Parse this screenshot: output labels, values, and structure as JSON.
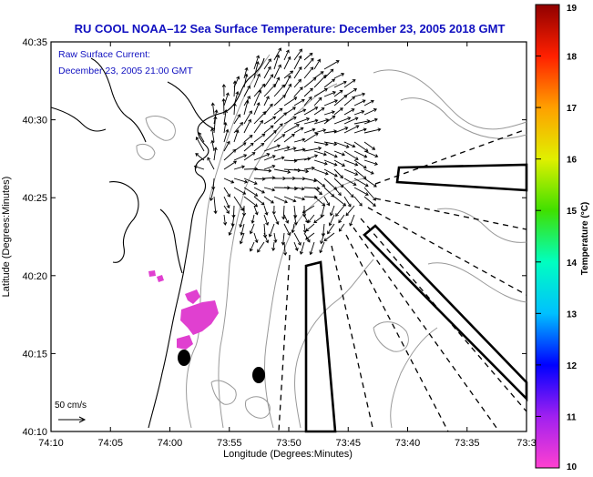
{
  "title": "RU COOL   NOAA–12  Sea Surface Temperature:  December 23, 2005 2018 GMT",
  "overlay": {
    "line1": "Raw Surface Current:",
    "line2": "December 23, 2005 21:00 GMT"
  },
  "scale_label": "50 cm/s",
  "colors": {
    "title": "#1010c0",
    "overlay_text": "#1010c0",
    "coast": "#000000",
    "bathymetry": "#999999",
    "sst_patch": "#e040d0",
    "arrow": "#000000"
  },
  "colorbar": {
    "label": "Temperature (°C)",
    "ticks": [
      "19",
      "18",
      "17",
      "16",
      "15",
      "14",
      "13",
      "12",
      "11",
      "10"
    ],
    "gradient": [
      "#ff40d0",
      "#a020f0",
      "#0000ff",
      "#00c0ff",
      "#00ffc0",
      "#40e000",
      "#e0f000",
      "#ffa000",
      "#ff2000",
      "#900000"
    ]
  },
  "chart_data": {
    "type": "map",
    "title": "RU COOL   NOAA–12  Sea Surface Temperature:  December 23, 2005 2018 GMT",
    "xlabel": "Longitude (Degrees:Minutes)",
    "ylabel": "Latitude (Degrees:Minutes)",
    "x_ticks": [
      "74:10",
      "74:05",
      "74:00",
      "73:55",
      "73:50",
      "73:45",
      "73:40",
      "73:35",
      "73:3"
    ],
    "y_ticks": [
      "40:35",
      "40:30",
      "40:25",
      "40:20",
      "40:15",
      "40:10"
    ],
    "x_range_minutes_west": [
      10,
      -30
    ],
    "y_range_minutes": [
      10,
      35
    ],
    "colorbar_range": [
      10,
      19
    ],
    "vector_field": "Raw Surface Current",
    "vector_scale_cm_s": 50
  }
}
